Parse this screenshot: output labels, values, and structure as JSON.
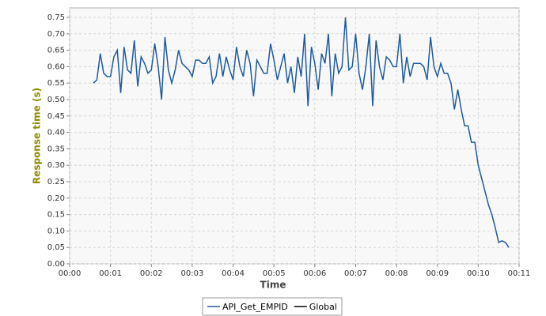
{
  "chart_data": {
    "type": "line",
    "x_label": "Time",
    "y_label": "Response time (s)",
    "xlim": [
      0,
      660
    ],
    "ylim": [
      0,
      0.75
    ],
    "grid": true,
    "legend": "bottom",
    "xticks": [
      {
        "value": 0,
        "label": "00:00"
      },
      {
        "value": 60,
        "label": "00:01"
      },
      {
        "value": 120,
        "label": "00:02"
      },
      {
        "value": 180,
        "label": "00:03"
      },
      {
        "value": 240,
        "label": "00:04"
      },
      {
        "value": 300,
        "label": "00:05"
      },
      {
        "value": 360,
        "label": "00:06"
      },
      {
        "value": 420,
        "label": "00:07"
      },
      {
        "value": 480,
        "label": "00:08"
      },
      {
        "value": 540,
        "label": "00:09"
      },
      {
        "value": 600,
        "label": "00:10"
      },
      {
        "value": 660,
        "label": "00:11"
      }
    ],
    "yticks": [
      {
        "value": 0,
        "label": "0.00"
      },
      {
        "value": 0.05,
        "label": "0.05"
      },
      {
        "value": 0.1,
        "label": "0.10"
      },
      {
        "value": 0.15,
        "label": "0.15"
      },
      {
        "value": 0.2,
        "label": "0.20"
      },
      {
        "value": 0.25,
        "label": "0.25"
      },
      {
        "value": 0.3,
        "label": "0.30"
      },
      {
        "value": 0.35,
        "label": "0.35"
      },
      {
        "value": 0.4,
        "label": "0.40"
      },
      {
        "value": 0.45,
        "label": "0.45"
      },
      {
        "value": 0.5,
        "label": "0.50"
      },
      {
        "value": 0.55,
        "label": "0.55"
      },
      {
        "value": 0.6,
        "label": "0.60"
      },
      {
        "value": 0.65,
        "label": "0.65"
      },
      {
        "value": 0.7,
        "label": "0.70"
      },
      {
        "value": 0.75,
        "label": "0.75"
      }
    ],
    "x": [
      35,
      40,
      45,
      50,
      55,
      60,
      65,
      70,
      75,
      80,
      85,
      90,
      95,
      100,
      105,
      110,
      115,
      120,
      125,
      130,
      135,
      140,
      145,
      150,
      155,
      160,
      165,
      170,
      175,
      180,
      185,
      190,
      195,
      200,
      205,
      210,
      215,
      220,
      225,
      230,
      235,
      240,
      245,
      250,
      255,
      260,
      265,
      270,
      275,
      280,
      285,
      290,
      295,
      300,
      305,
      310,
      315,
      320,
      325,
      330,
      335,
      340,
      345,
      350,
      355,
      360,
      365,
      370,
      375,
      380,
      385,
      390,
      395,
      400,
      405,
      410,
      415,
      420,
      425,
      430,
      435,
      440,
      445,
      450,
      455,
      460,
      465,
      470,
      475,
      480,
      485,
      490,
      495,
      500,
      505,
      510,
      515,
      520,
      525,
      530,
      535,
      540,
      545,
      550,
      555,
      560,
      565,
      570,
      575,
      580,
      585,
      590,
      595,
      600,
      605,
      610,
      615,
      620,
      625,
      630,
      635,
      640,
      645
    ],
    "series": [
      {
        "name": "API_Get_EMPID",
        "color": "#1f5a9e",
        "values": [
          0.55,
          0.56,
          0.64,
          0.58,
          0.57,
          0.57,
          0.63,
          0.65,
          0.52,
          0.66,
          0.59,
          0.58,
          0.68,
          0.54,
          0.63,
          0.61,
          0.58,
          0.59,
          0.67,
          0.6,
          0.5,
          0.69,
          0.59,
          0.55,
          0.59,
          0.65,
          0.61,
          0.6,
          0.59,
          0.57,
          0.62,
          0.62,
          0.61,
          0.61,
          0.63,
          0.55,
          0.57,
          0.64,
          0.57,
          0.63,
          0.59,
          0.56,
          0.66,
          0.6,
          0.57,
          0.65,
          0.61,
          0.51,
          0.62,
          0.6,
          0.58,
          0.58,
          0.67,
          0.62,
          0.56,
          0.6,
          0.64,
          0.55,
          0.6,
          0.52,
          0.63,
          0.57,
          0.7,
          0.48,
          0.66,
          0.61,
          0.53,
          0.64,
          0.61,
          0.7,
          0.51,
          0.64,
          0.58,
          0.6,
          0.75,
          0.59,
          0.6,
          0.7,
          0.58,
          0.53,
          0.6,
          0.7,
          0.48,
          0.68,
          0.6,
          0.56,
          0.63,
          0.62,
          0.6,
          0.6,
          0.7,
          0.55,
          0.63,
          0.57,
          0.61,
          0.61,
          0.61,
          0.6,
          0.56,
          0.69,
          0.6,
          0.57,
          0.61,
          0.58,
          0.58,
          0.55,
          0.47,
          0.53,
          0.47,
          0.42,
          0.42,
          0.37,
          0.37,
          0.3,
          0.26,
          0.22,
          0.18,
          0.15,
          0.11,
          0.065,
          0.07,
          0.065,
          0.05
        ]
      },
      {
        "name": "Global",
        "color": "#000000"
      }
    ]
  }
}
